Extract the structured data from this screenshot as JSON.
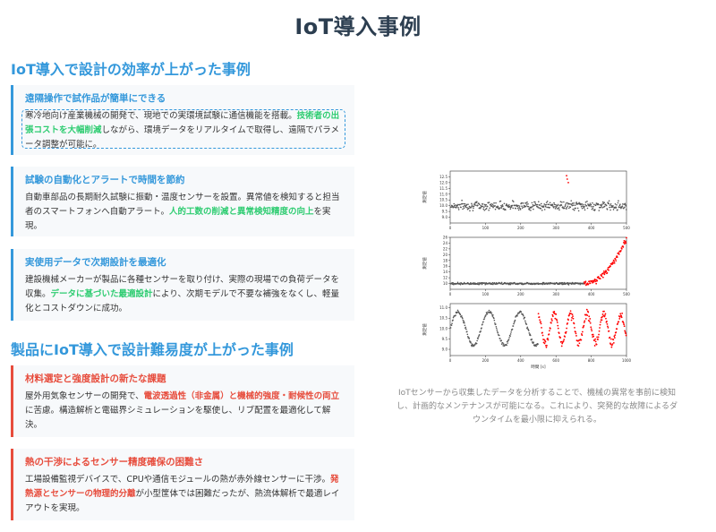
{
  "page_title": "IoT導入事例",
  "section1": {
    "title": "IoT導入で設計の効率が上がった事例",
    "cards": [
      {
        "title": "遠隔操作で試作品が簡単にできる",
        "body_a": "寒冷地向け産業機械の開発で、現地での実環境試験に通信機能を搭載。",
        "highlight": "技術者の出張コストを大幅削減",
        "body_b": "しながら、環境データをリアルタイムで取得し、遠隔でパラメータ調整が可能に。"
      },
      {
        "title": "試験の自動化とアラートで時間を節約",
        "body_a": "自動車部品の長期耐久試験に振動・温度センサーを設置。異常値を検知すると担当者のスマートフォンへ自動アラート。",
        "highlight": "人的工数の削減と異常検知精度の向上",
        "body_b": "を実現。"
      },
      {
        "title": "実使用データで次期設計を最適化",
        "body_a": "建設機械メーカーが製品に各種センサーを取り付け、実際の現場での負荷データを収集。",
        "highlight": "データに基づいた最適設計",
        "body_b": "により、次期モデルで不要な補強をなくし、軽量化とコストダウンに成功。"
      }
    ]
  },
  "section2": {
    "title": "製品にIoT導入で設計難易度が上がった事例",
    "cards": [
      {
        "title": "材料選定と強度設計の新たな課題",
        "body_a": "屋外用気象センサーの開発で、",
        "highlight": "電波透過性（非金属）と機械的強度・耐候性の両立",
        "body_b": "に苦慮。構造解析と電磁界シミュレーションを駆使し、リブ配置を最適化して解決。"
      },
      {
        "title": "熱の干渉によるセンサー精度確保の困難さ",
        "body_a": "工場設備監視デバイスで、CPUや通信モジュールの熱が赤外線センサーに干渉。",
        "highlight": "発熱源とセンサーの物理的分離",
        "body_b": "が小型筐体では困難だったが、熱流体解析で最適レイアウトを実現。"
      }
    ]
  },
  "caption": "IoTセンサーから収集したデータを分析することで、機械の異常を事前に検知し、計画的なメンテナンスが可能になる。これにより、突発的な故障によるダウンタイムを最小限に抑えられる。",
  "colors": {
    "accent_blue": "#3498db",
    "accent_red": "#e74c3c",
    "highlight_green": "#2ecc71",
    "title_dark": "#2c3e50",
    "normal_points": "#555555",
    "anomaly_points": "#ff0000"
  },
  "chart_data": [
    {
      "type": "scatter",
      "ylabel": "測定値",
      "xlim": [
        0,
        500
      ],
      "ylim": [
        8.5,
        13
      ],
      "yticks": [
        9.0,
        9.5,
        10.0,
        10.5,
        11.0,
        11.5,
        12.0,
        12.5
      ],
      "xticks": [
        0,
        100,
        200,
        300,
        400,
        500
      ],
      "pattern": "baseline ~10 with noise, isolated spike anomalies near x≈330",
      "anomalies": [
        {
          "x": 330,
          "y": 12.6
        },
        {
          "x": 332,
          "y": 12.3
        },
        {
          "x": 335,
          "y": 12.0
        }
      ]
    },
    {
      "type": "scatter",
      "ylabel": "測定値",
      "xlim": [
        0,
        500
      ],
      "ylim": [
        8,
        26
      ],
      "yticks": [
        10,
        12,
        14,
        16,
        18,
        20,
        22,
        24,
        26
      ],
      "xticks": [
        0,
        100,
        200,
        300,
        400,
        500
      ],
      "pattern": "flat ~10 until x≈380 then rising trend to ~25 (anomalous, red)",
      "anomaly_start_x": 380
    },
    {
      "type": "scatter",
      "ylabel": "測定値",
      "xlabel": "時間 [s]",
      "xlim": [
        0,
        1000
      ],
      "ylim": [
        8.7,
        11.2
      ],
      "yticks": [
        9.0,
        9.5,
        10.0,
        10.5,
        11.0
      ],
      "xticks": [
        0,
        200,
        400,
        600,
        800,
        1000
      ],
      "pattern": "periodic sine ~10±0.9 (normal) then higher-frequency irregular oscillation after x≈500 (red)",
      "anomaly_start_x": 500
    }
  ]
}
